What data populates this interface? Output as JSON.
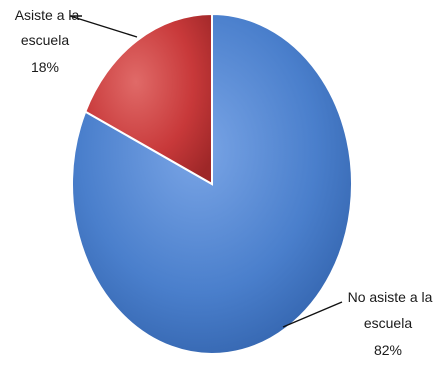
{
  "chart_data": {
    "type": "pie",
    "title": "",
    "series": [
      {
        "values": [
          {
            "label": "No asiste a la escuela",
            "value": 82,
            "percent_label": "82%",
            "color": "#4a7fcc"
          },
          {
            "label": "Asiste a la escuela",
            "value": 18,
            "percent_label": "18%",
            "color": "#c8393a"
          }
        ]
      }
    ],
    "labels": {
      "slice_1_line1": "No asiste a la",
      "slice_1_line2": "escuela",
      "slice_1_pct": "82%",
      "slice_2_line1": "Asiste a la",
      "slice_2_line2": "escuela",
      "slice_2_pct": "18%"
    },
    "legend": "none"
  }
}
